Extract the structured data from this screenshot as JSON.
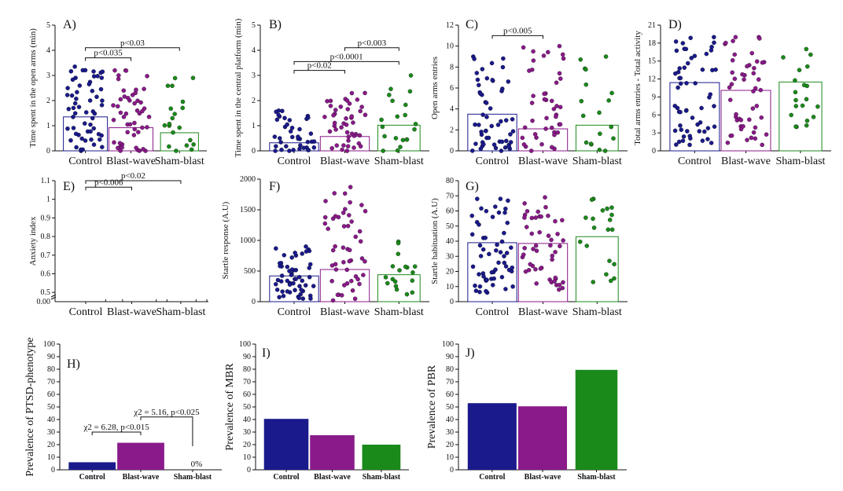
{
  "colors": {
    "control": "#1a1a8c",
    "blast": "#8a1a8a",
    "sham": "#1a8a1a"
  },
  "chart_data": [
    {
      "label": "A)",
      "type": "scatter",
      "ylabel": "Time spent in the open arms (min)",
      "categories": [
        "Control",
        "Blast-wave",
        "Sham-blast"
      ],
      "ylim": [
        0,
        5
      ],
      "yticks": [
        0,
        1,
        2,
        3,
        4,
        5
      ],
      "bars": [
        1.35,
        0.92,
        0.72
      ],
      "n": [
        58,
        50,
        20
      ],
      "points_range": [
        [
          0,
          3.35
        ],
        [
          0,
          3.2
        ],
        [
          0,
          2.9
        ]
      ],
      "annotations": [
        {
          "text": "p<0.035",
          "from": 0,
          "to": 1,
          "y": 3.7
        },
        {
          "text": "p<0.03",
          "from": 0,
          "to": 2,
          "y": 4.1
        }
      ]
    },
    {
      "label": "B)",
      "type": "scatter",
      "ylabel": "Time spent in the central platform (min)",
      "categories": [
        "Control",
        "Blast-wave",
        "Sham-blast"
      ],
      "ylim": [
        0,
        5
      ],
      "yticks": [
        0,
        1,
        2,
        3,
        4,
        5
      ],
      "bars": [
        0.32,
        0.57,
        1.02
      ],
      "n": [
        40,
        45,
        20
      ],
      "points_range": [
        [
          0,
          1.6
        ],
        [
          0,
          2.3
        ],
        [
          0,
          3.0
        ]
      ],
      "annotations": [
        {
          "text": "p<0.02",
          "from": 0,
          "to": 1,
          "y": 3.2
        },
        {
          "text": "p<0.0001",
          "from": 0,
          "to": 2,
          "y": 3.55
        },
        {
          "text": "p<0.003",
          "from": 1,
          "to": 2,
          "y": 4.1
        }
      ]
    },
    {
      "label": "C)",
      "type": "scatter",
      "ylabel": "Open arms entries",
      "categories": [
        "Control",
        "Blast-wave",
        "Sham-blast"
      ],
      "ylim": [
        0,
        12
      ],
      "yticks": [
        0,
        2,
        4,
        6,
        8,
        10,
        12
      ],
      "bars": [
        3.5,
        2.1,
        2.45
      ],
      "n": [
        55,
        45,
        18
      ],
      "points_range": [
        [
          0,
          9
        ],
        [
          0,
          10
        ],
        [
          0,
          9
        ]
      ],
      "annotations": [
        {
          "text": "p<0.005",
          "from": 0,
          "to": 1,
          "y": 11.0
        }
      ]
    },
    {
      "label": "D)",
      "type": "scatter",
      "ylabel": "Total arms entries - Total activity",
      "categories": [
        "Control",
        "Blast-wave",
        "Sham-blast"
      ],
      "ylim": [
        0,
        21
      ],
      "yticks": [
        0,
        3,
        6,
        9,
        12,
        15,
        18,
        21
      ],
      "bars": [
        11.4,
        10.1,
        11.5
      ],
      "n": [
        58,
        50,
        20
      ],
      "points_range": [
        [
          1,
          19
        ],
        [
          1,
          19
        ],
        [
          4,
          17
        ]
      ],
      "annotations": []
    },
    {
      "label": "E)",
      "type": "scatter",
      "ylabel": "Anxiety index",
      "categories": [
        "Control",
        "Blast-wave",
        "Sham-blast"
      ],
      "ylim": [
        0.45,
        1.1
      ],
      "yticks": [
        0.5,
        0.6,
        0.7,
        0.8,
        0.9,
        1.0,
        1.1
      ],
      "extra_tick": "0.00",
      "bars": [],
      "n": [
        0,
        0,
        0
      ],
      "points_range": [],
      "annotations": [
        {
          "text": "p<0.006",
          "from": 0,
          "to": 1,
          "y": 1.065
        },
        {
          "text": "p<0.02",
          "from": 0,
          "to": 2,
          "y": 1.1
        }
      ]
    },
    {
      "label": "F)",
      "type": "scatter",
      "ylabel": "Startle response (A.U)",
      "categories": [
        "Control",
        "Blast-wave",
        "Sham-blast"
      ],
      "ylim": [
        0,
        2000
      ],
      "yticks": [
        0,
        500,
        1000,
        1500,
        2000
      ],
      "bars": [
        420,
        525,
        440
      ],
      "n": [
        55,
        50,
        18
      ],
      "points_range": [
        [
          50,
          900
        ],
        [
          20,
          1870
        ],
        [
          120,
          980
        ]
      ],
      "annotations": []
    },
    {
      "label": "G)",
      "type": "scatter",
      "ylabel": "Startle habituation (A.U)",
      "categories": [
        "Control",
        "Blast-wave",
        "Sham-blast"
      ],
      "ylim": [
        0,
        80
      ],
      "yticks": [
        0,
        10,
        20,
        30,
        40,
        50,
        60,
        70,
        80
      ],
      "bars": [
        39,
        38.5,
        43
      ],
      "n": [
        58,
        50,
        20
      ],
      "points_range": [
        [
          6,
          68
        ],
        [
          8,
          69
        ],
        [
          13,
          68
        ]
      ],
      "annotations": []
    },
    {
      "label": "H)",
      "type": "bar",
      "ylabel": "Prevalence of PTSD-phenotype",
      "categories": [
        "Control",
        "Blast-wave",
        "Sham-blast"
      ],
      "ylim": [
        0,
        100
      ],
      "yticks": [
        0,
        10,
        20,
        30,
        40,
        50,
        60,
        70,
        80,
        90,
        100
      ],
      "values": [
        6,
        21.5,
        0
      ],
      "value_label": "0%",
      "annotations": [
        {
          "text": "χ2 = 6.28, p<0.015",
          "from": 0,
          "to": 1,
          "y": 30
        },
        {
          "text": "χ2 = 5.16, p<0.025",
          "from": 1,
          "to": 2,
          "y": 42
        }
      ]
    },
    {
      "label": "I)",
      "type": "bar",
      "ylabel": "Prevalence of MBR",
      "categories": [
        "Control",
        "Blast-wave",
        "Sham-blast"
      ],
      "ylim": [
        0,
        100
      ],
      "yticks": [
        0,
        10,
        20,
        30,
        40,
        50,
        60,
        70,
        80,
        90,
        100
      ],
      "values": [
        40.5,
        27.5,
        20
      ],
      "annotations": []
    },
    {
      "label": "J)",
      "type": "bar",
      "ylabel": "Prevalence of PBR",
      "categories": [
        "Control",
        "Blast-wave",
        "Sham-blast"
      ],
      "ylim": [
        0,
        100
      ],
      "yticks": [
        0,
        10,
        20,
        30,
        40,
        50,
        60,
        70,
        80,
        90,
        100
      ],
      "values": [
        53,
        50.5,
        79.5
      ],
      "annotations": []
    }
  ]
}
